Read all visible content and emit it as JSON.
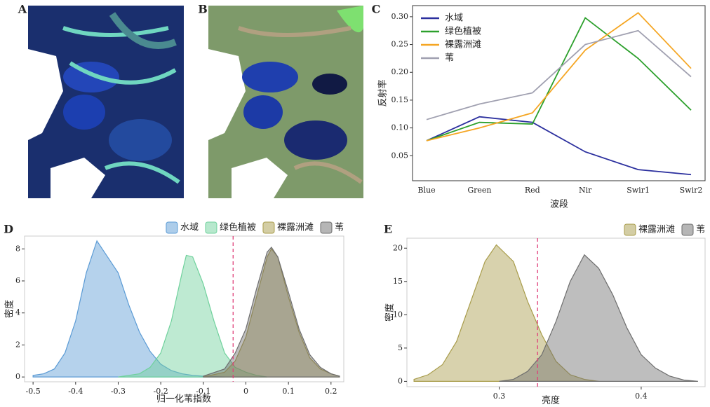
{
  "image_panels": [
    {
      "label": "A"
    },
    {
      "label": "B"
    }
  ],
  "chart_data": [
    {
      "type": "line",
      "label": "C",
      "x_label": "波段",
      "y_label": "反射率",
      "categories": [
        "Blue",
        "Green",
        "Red",
        "Nir",
        "Swir1",
        "Swir2"
      ],
      "series": [
        {
          "name": "水域",
          "color": "#2b2f9e",
          "values": [
            0.077,
            0.12,
            0.11,
            0.057,
            0.025,
            0.016
          ]
        },
        {
          "name": "绿色植被",
          "color": "#2ca02c",
          "values": [
            0.077,
            0.11,
            0.107,
            0.298,
            0.225,
            0.132
          ]
        },
        {
          "name": "裸露洲滩",
          "color": "#f5a623",
          "values": [
            0.077,
            0.1,
            0.127,
            0.24,
            0.307,
            0.207
          ]
        },
        {
          "name": "苇",
          "color": "#a0a0b0",
          "values": [
            0.115,
            0.143,
            0.163,
            0.25,
            0.275,
            0.192
          ]
        }
      ],
      "ylim": [
        0.005,
        0.32
      ],
      "yticks": [
        0.05,
        {
          "value": 0.1,
          "label": "0.10"
        },
        0.15,
        {
          "value": 0.2,
          "label": "0.20"
        },
        0.25,
        {
          "value": 0.3,
          "label": "0.30"
        }
      ],
      "legend": "upper left"
    },
    {
      "type": "density",
      "label": "D",
      "x_label": "归一化苇指数",
      "y_label": "密度",
      "series": [
        {
          "name": "水域",
          "color": "#5b9bd5",
          "x": [
            -0.5,
            -0.475,
            -0.45,
            -0.425,
            -0.4,
            -0.375,
            -0.35,
            -0.325,
            -0.3,
            -0.275,
            -0.25,
            -0.225,
            -0.2,
            -0.175,
            -0.15,
            -0.125,
            -0.1,
            -0.05
          ],
          "values": [
            0.1,
            0.2,
            0.5,
            1.5,
            3.5,
            6.5,
            8.5,
            7.5,
            6.5,
            4.5,
            2.8,
            1.6,
            0.8,
            0.4,
            0.2,
            0.1,
            0.05,
            0
          ]
        },
        {
          "name": "绿色植被",
          "color": "#6fd19c",
          "x": [
            -0.3,
            -0.25,
            -0.225,
            -0.2,
            -0.175,
            -0.15,
            -0.14,
            -0.125,
            -0.1,
            -0.075,
            -0.05,
            -0.025,
            0,
            0.025,
            0.05
          ],
          "values": [
            0,
            0.2,
            0.6,
            1.5,
            3.5,
            6.5,
            7.6,
            7.5,
            5.8,
            3.5,
            1.5,
            0.6,
            0.3,
            0.1,
            0
          ]
        },
        {
          "name": "裸露洲滩",
          "color": "#a89c4a",
          "x": [
            -0.1,
            -0.05,
            -0.025,
            0,
            0.025,
            0.05,
            0.06,
            0.075,
            0.1,
            0.125,
            0.15,
            0.175,
            0.2,
            0.22
          ],
          "values": [
            0,
            0.3,
            1,
            2.5,
            5,
            7.5,
            8,
            7.5,
            5,
            2.8,
            1.2,
            0.5,
            0.2,
            0.05
          ]
        },
        {
          "name": "苇",
          "color": "#6e6e6e",
          "x": [
            -0.1,
            -0.05,
            -0.025,
            0,
            0.025,
            0.05,
            0.06,
            0.075,
            0.1,
            0.125,
            0.15,
            0.175,
            0.2,
            0.22
          ],
          "values": [
            0.05,
            0.5,
            1.5,
            3,
            5.5,
            7.8,
            8.1,
            7.5,
            5.3,
            3,
            1.4,
            0.6,
            0.2,
            0.05
          ]
        }
      ],
      "xlim": [
        -0.52,
        0.23
      ],
      "xticks": [
        -0.5,
        -0.4,
        -0.3,
        -0.2,
        -0.1,
        0.0,
        0.1,
        0.2
      ],
      "ylim": [
        -0.3,
        8.8
      ],
      "yticks": [
        0,
        2,
        4,
        6,
        8
      ],
      "vline": -0.03,
      "legend": "top"
    },
    {
      "type": "density",
      "label": "E",
      "x_label": "亮度",
      "y_label": "密度",
      "series": [
        {
          "name": "裸露洲滩",
          "color": "#a89c4a",
          "x": [
            0.24,
            0.25,
            0.26,
            0.27,
            0.28,
            0.29,
            0.298,
            0.31,
            0.32,
            0.33,
            0.34,
            0.35,
            0.36,
            0.37
          ],
          "values": [
            0.3,
            1,
            2.5,
            6,
            12,
            18,
            20.5,
            18,
            12,
            7,
            3,
            1,
            0.3,
            0
          ]
        },
        {
          "name": "苇",
          "color": "#6e6e6e",
          "x": [
            0.3,
            0.31,
            0.32,
            0.33,
            0.34,
            0.35,
            0.36,
            0.37,
            0.38,
            0.39,
            0.4,
            0.41,
            0.42,
            0.43,
            0.44
          ],
          "values": [
            0,
            0.3,
            1.5,
            4,
            9,
            15,
            19,
            17,
            13,
            8,
            4,
            2,
            0.8,
            0.2,
            0
          ]
        }
      ],
      "xlim": [
        0.235,
        0.445
      ],
      "xticks": [
        0.3,
        0.4
      ],
      "ylim": [
        -0.8,
        21.5
      ],
      "yticks": [
        0,
        5,
        10,
        15,
        20
      ],
      "vline": 0.327,
      "legend": "top"
    }
  ]
}
